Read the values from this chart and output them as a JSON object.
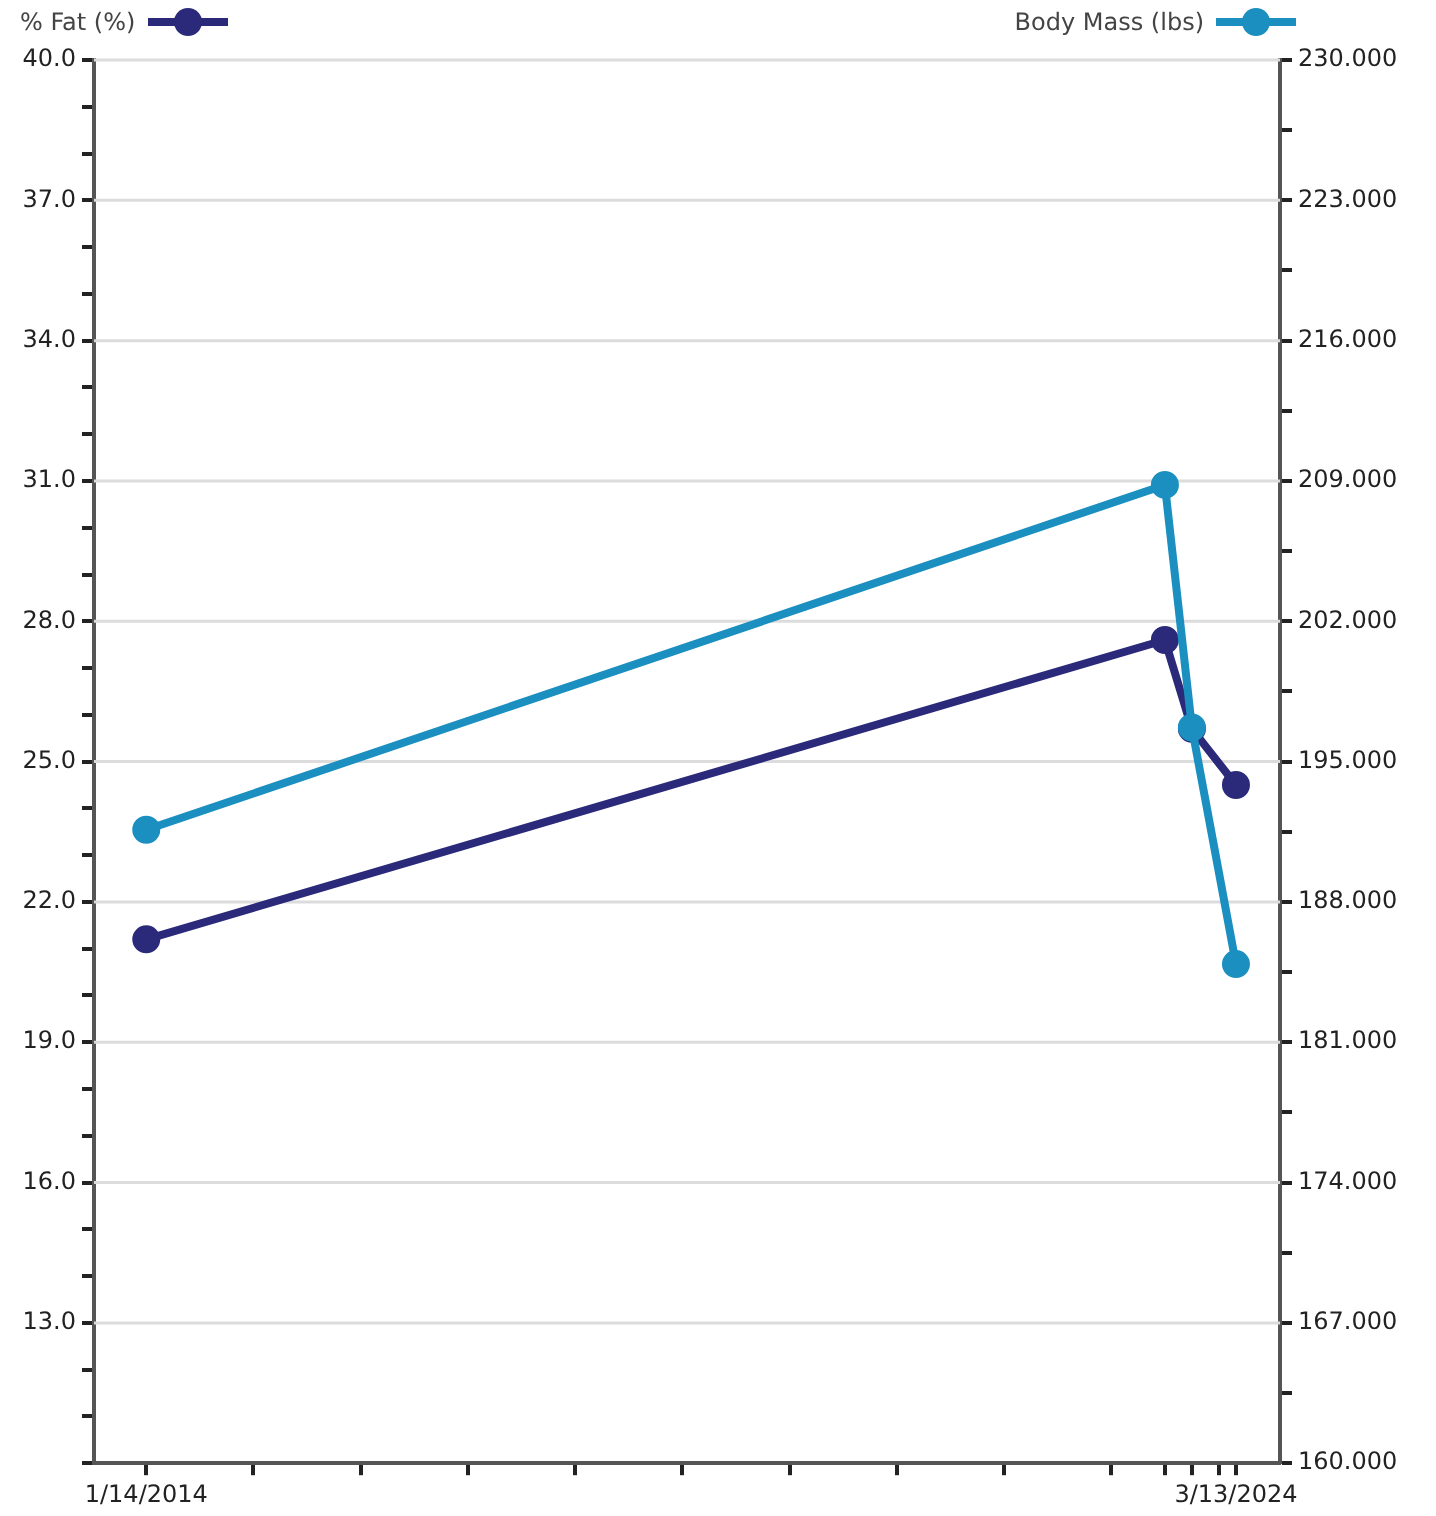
{
  "chart_data": {
    "type": "line",
    "x": [
      "2014-01-14",
      "2023-07-15",
      "2023-10-15",
      "2024-03-13"
    ],
    "series": [
      {
        "name": "% Fat (%)",
        "color": "#2b2a7a",
        "values": [
          21.2,
          27.6,
          25.7,
          24.5
        ]
      },
      {
        "name": "Body Mass (lbs)",
        "color": "#1a8fc0",
        "axis": "y2",
        "values": [
          191.6,
          208.8,
          196.7,
          184.9
        ]
      }
    ],
    "xlim": [
      "2013-07-20",
      "2024-08-10"
    ],
    "xticks": [
      {
        "value": "2014-01-14",
        "label": "1/14/2014"
      },
      {
        "value": "2015-01-14",
        "label": null
      },
      {
        "value": "2016-01-14",
        "label": null
      },
      {
        "value": "2017-01-14",
        "label": null
      },
      {
        "value": "2018-01-14",
        "label": null
      },
      {
        "value": "2019-01-14",
        "label": null
      },
      {
        "value": "2020-01-14",
        "label": null
      },
      {
        "value": "2021-01-14",
        "label": null
      },
      {
        "value": "2022-01-14",
        "label": null
      },
      {
        "value": "2023-01-14",
        "label": null
      },
      {
        "value": "2023-07-15",
        "label": null
      },
      {
        "value": "2023-10-15",
        "label": null
      },
      {
        "value": "2024-01-14",
        "label": null
      },
      {
        "value": "2024-03-13",
        "label": "3/13/2024"
      }
    ],
    "ylim": [
      10,
      40
    ],
    "yticks": [
      {
        "value": 10,
        "label": null
      },
      {
        "value": 11,
        "label": null
      },
      {
        "value": 12,
        "label": null
      },
      {
        "value": 13,
        "label": "13.0"
      },
      {
        "value": 14,
        "label": null
      },
      {
        "value": 15,
        "label": null
      },
      {
        "value": 16,
        "label": "16.0"
      },
      {
        "value": 17,
        "label": null
      },
      {
        "value": 18,
        "label": null
      },
      {
        "value": 19,
        "label": "19.0"
      },
      {
        "value": 20,
        "label": null
      },
      {
        "value": 21,
        "label": null
      },
      {
        "value": 22,
        "label": "22.0"
      },
      {
        "value": 23,
        "label": null
      },
      {
        "value": 24,
        "label": null
      },
      {
        "value": 25,
        "label": "25.0"
      },
      {
        "value": 26,
        "label": null
      },
      {
        "value": 27,
        "label": null
      },
      {
        "value": 28,
        "label": "28.0"
      },
      {
        "value": 29,
        "label": null
      },
      {
        "value": 30,
        "label": null
      },
      {
        "value": 31,
        "label": "31.0"
      },
      {
        "value": 32,
        "label": null
      },
      {
        "value": 33,
        "label": null
      },
      {
        "value": 34,
        "label": "34.0"
      },
      {
        "value": 35,
        "label": null
      },
      {
        "value": 36,
        "label": null
      },
      {
        "value": 37,
        "label": "37.0"
      },
      {
        "value": 38,
        "label": null
      },
      {
        "value": 39,
        "label": null
      },
      {
        "value": 40,
        "label": "40.0"
      }
    ],
    "y2lim": [
      160,
      230
    ],
    "y2ticks": [
      {
        "value": 160,
        "label": "160.000"
      },
      {
        "value": 163.5,
        "label": null
      },
      {
        "value": 167,
        "label": "167.000"
      },
      {
        "value": 170.5,
        "label": null
      },
      {
        "value": 174,
        "label": "174.000"
      },
      {
        "value": 177.5,
        "label": null
      },
      {
        "value": 181,
        "label": "181.000"
      },
      {
        "value": 184.5,
        "label": null
      },
      {
        "value": 188,
        "label": "188.000"
      },
      {
        "value": 191.5,
        "label": null
      },
      {
        "value": 195,
        "label": "195.000"
      },
      {
        "value": 198.5,
        "label": null
      },
      {
        "value": 202,
        "label": "202.000"
      },
      {
        "value": 205.5,
        "label": null
      },
      {
        "value": 209,
        "label": "209.000"
      },
      {
        "value": 212.5,
        "label": null
      },
      {
        "value": 216,
        "label": "216.000"
      },
      {
        "value": 219.5,
        "label": null
      },
      {
        "value": 223,
        "label": "223.000"
      },
      {
        "value": 226.5,
        "label": null
      },
      {
        "value": 230,
        "label": "230.000"
      }
    ],
    "grid": "y",
    "legend": "top",
    "marker": "circle",
    "line_style": "solid"
  }
}
